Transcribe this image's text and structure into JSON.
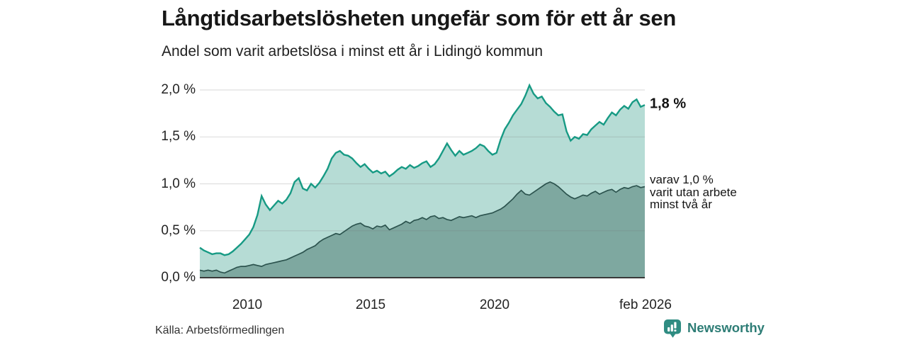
{
  "header": {
    "title": "Långtidsarbetslösheten ungefär som för ett år sen",
    "subtitle": "Andel som varit arbetslösa i minst ett år i Lidingö kommun"
  },
  "footer": {
    "source": "Källa: Arbetsförmedlingen",
    "brand_name": "Newsworthy",
    "brand_color": "#2e7d76",
    "brand_icon": "bar-chart-speech-bubble-icon",
    "brand_icon_color": "#2f8c82"
  },
  "chart_data": {
    "type": "area",
    "title": "Långtidsarbetslösheten ungefär som för ett år sen",
    "subtitle": "Andel som varit arbetslösa i minst ett år i Lidingö kommun",
    "x_start": 2008.083,
    "x_end": 2026.083,
    "ylim": [
      0,
      2.12
    ],
    "grid": true,
    "x_ticks": [
      {
        "pos": 2010,
        "label": "2010"
      },
      {
        "pos": 2015,
        "label": "2015"
      },
      {
        "pos": 2020,
        "label": "2020"
      },
      {
        "pos": 2026.083,
        "label": "feb 2026"
      }
    ],
    "y_ticks": [
      {
        "value": 2.0,
        "label": "2,0 %"
      },
      {
        "value": 1.5,
        "label": "1,5 %"
      },
      {
        "value": 1.0,
        "label": "1,0 %"
      },
      {
        "value": 0.5,
        "label": "0,5 %"
      },
      {
        "value": 0.0,
        "label": "0,0 %"
      }
    ],
    "series": [
      {
        "name": "Arbetslösa minst ett år",
        "line_color": "#179a84",
        "fill_color": "#b6dcd5",
        "end_value": "1,8 %",
        "values": [
          0.32,
          0.29,
          0.27,
          0.25,
          0.26,
          0.26,
          0.24,
          0.25,
          0.28,
          0.32,
          0.36,
          0.41,
          0.46,
          0.54,
          0.67,
          0.87,
          0.78,
          0.72,
          0.77,
          0.82,
          0.79,
          0.83,
          0.9,
          1.02,
          1.06,
          0.95,
          0.93,
          1.0,
          0.96,
          1.01,
          1.08,
          1.16,
          1.27,
          1.33,
          1.35,
          1.31,
          1.3,
          1.27,
          1.22,
          1.18,
          1.21,
          1.16,
          1.12,
          1.14,
          1.11,
          1.13,
          1.08,
          1.11,
          1.15,
          1.18,
          1.16,
          1.2,
          1.17,
          1.19,
          1.22,
          1.24,
          1.18,
          1.21,
          1.27,
          1.35,
          1.43,
          1.36,
          1.3,
          1.35,
          1.31,
          1.33,
          1.35,
          1.38,
          1.42,
          1.4,
          1.35,
          1.31,
          1.33,
          1.47,
          1.58,
          1.65,
          1.73,
          1.79,
          1.85,
          1.94,
          2.05,
          1.96,
          1.91,
          1.93,
          1.86,
          1.82,
          1.77,
          1.73,
          1.74,
          1.56,
          1.46,
          1.5,
          1.48,
          1.53,
          1.52,
          1.58,
          1.62,
          1.66,
          1.63,
          1.7,
          1.76,
          1.73,
          1.79,
          1.83,
          1.8,
          1.87,
          1.9,
          1.82,
          1.84
        ]
      },
      {
        "name": "Utan arbete minst två år",
        "line_color": "#2c534e",
        "fill_color": "#7ea8a0",
        "end_value": "1,0 %",
        "values": [
          0.08,
          0.07,
          0.08,
          0.07,
          0.08,
          0.06,
          0.05,
          0.07,
          0.09,
          0.11,
          0.12,
          0.12,
          0.13,
          0.14,
          0.13,
          0.12,
          0.14,
          0.15,
          0.16,
          0.17,
          0.18,
          0.19,
          0.21,
          0.23,
          0.25,
          0.27,
          0.3,
          0.32,
          0.34,
          0.38,
          0.41,
          0.43,
          0.45,
          0.47,
          0.46,
          0.49,
          0.52,
          0.55,
          0.57,
          0.58,
          0.55,
          0.54,
          0.52,
          0.55,
          0.54,
          0.56,
          0.51,
          0.53,
          0.55,
          0.57,
          0.6,
          0.58,
          0.61,
          0.62,
          0.64,
          0.62,
          0.65,
          0.66,
          0.63,
          0.64,
          0.62,
          0.61,
          0.63,
          0.65,
          0.64,
          0.65,
          0.66,
          0.64,
          0.66,
          0.67,
          0.68,
          0.69,
          0.71,
          0.73,
          0.76,
          0.8,
          0.84,
          0.89,
          0.93,
          0.89,
          0.88,
          0.91,
          0.94,
          0.97,
          1.0,
          1.02,
          1.0,
          0.97,
          0.93,
          0.89,
          0.86,
          0.84,
          0.86,
          0.88,
          0.87,
          0.9,
          0.92,
          0.89,
          0.91,
          0.93,
          0.94,
          0.91,
          0.94,
          0.96,
          0.95,
          0.97,
          0.98,
          0.96,
          0.97
        ]
      }
    ],
    "annotations": {
      "end_value_label": "1,8 %",
      "wedge_label_lines": [
        "varav 1,0 %",
        "varit utan arbete",
        "minst två år"
      ]
    },
    "axis_color": "#3a3a3a",
    "gridline_color": "#dcdcdc"
  }
}
